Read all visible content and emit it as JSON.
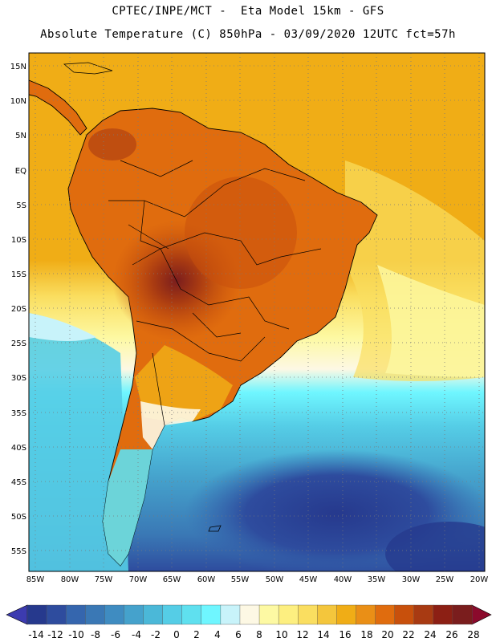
{
  "header": {
    "line1": "CPTEC/INPE/MCT -  Eta Model 15km - GFS",
    "line2": "Absolute Temperature (C) 850hPa - 03/09/2020 12UTC fct=57h"
  },
  "map": {
    "region": "South America",
    "variable": "Absolute Temperature (C)",
    "level": "850hPa",
    "lat_labels": [
      "15N",
      "10N",
      "5N",
      "EQ",
      "5S",
      "10S",
      "15S",
      "20S",
      "25S",
      "30S",
      "35S",
      "40S",
      "45S",
      "50S",
      "55S"
    ],
    "lon_labels": [
      "85W",
      "80W",
      "75W",
      "70W",
      "65W",
      "60W",
      "55W",
      "50W",
      "45W",
      "40W",
      "35W",
      "30W",
      "25W",
      "20W"
    ],
    "lat_range": [
      17,
      -57
    ],
    "lon_range": [
      -86,
      -19
    ]
  },
  "colorbar": {
    "labels": [
      "-14",
      "-12",
      "-10",
      "-8",
      "-6",
      "-4",
      "-2",
      "0",
      "2",
      "4",
      "6",
      "8",
      "10",
      "12",
      "14",
      "16",
      "18",
      "20",
      "22",
      "24",
      "26",
      "28"
    ],
    "colors": [
      "#26398d",
      "#2e4c9e",
      "#3566ae",
      "#3a78b5",
      "#3f8cc1",
      "#45a2cc",
      "#4bb8d8",
      "#55cde6",
      "#5fe0ef",
      "#6ff6ff",
      "#c8f3fa",
      "#fdf8e4",
      "#fdf9a3",
      "#fdef80",
      "#fade60",
      "#f4c63c",
      "#f0ad16",
      "#ea8f16",
      "#e06c0e",
      "#c8500c",
      "#a83a12",
      "#8c1f14",
      "#7a1d1d"
    ],
    "under_color": "#3c3bb0",
    "over_color": "#8b0a2c"
  }
}
